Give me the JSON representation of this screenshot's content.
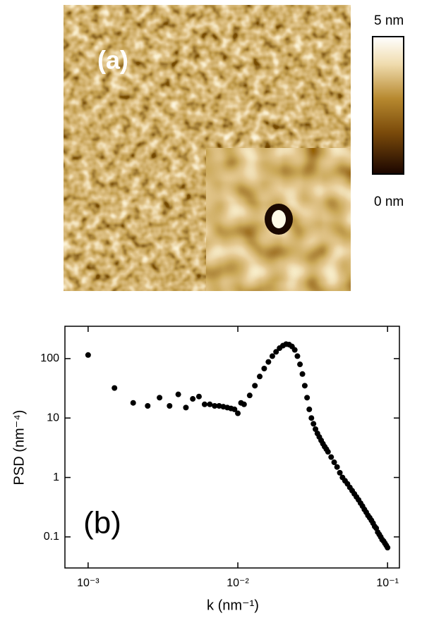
{
  "panel_a": {
    "label": "(a)",
    "colorbar": {
      "max_label": "5 nm",
      "min_label": "0 nm"
    }
  },
  "chart_data": {
    "type": "scatter",
    "panel_label": "(b)",
    "x_label": "k (nm⁻¹)",
    "y_label": "PSD (nm⁻⁴)",
    "x_scale": "log",
    "y_scale": "log",
    "xlim": [
      0.0007,
      0.12
    ],
    "ylim": [
      0.03,
      350
    ],
    "xticks": [
      {
        "value": 0.001,
        "label": "10⁻³"
      },
      {
        "value": 0.01,
        "label": "10⁻²"
      },
      {
        "value": 0.1,
        "label": "10⁻¹"
      }
    ],
    "yticks": [
      0.1,
      1,
      10,
      100
    ],
    "color": "#000000",
    "x": [
      0.001,
      0.0015,
      0.002,
      0.0025,
      0.003,
      0.0035,
      0.004,
      0.0045,
      0.005,
      0.0055,
      0.006,
      0.0065,
      0.007,
      0.0075,
      0.008,
      0.0085,
      0.009,
      0.0095,
      0.01,
      0.0105,
      0.011,
      0.012,
      0.013,
      0.014,
      0.015,
      0.016,
      0.017,
      0.018,
      0.019,
      0.02,
      0.021,
      0.022,
      0.023,
      0.024,
      0.025,
      0.026,
      0.027,
      0.028,
      0.029,
      0.03,
      0.031,
      0.032,
      0.033,
      0.034,
      0.035,
      0.036,
      0.037,
      0.038,
      0.039,
      0.04,
      0.042,
      0.044,
      0.046,
      0.048,
      0.05,
      0.052,
      0.054,
      0.056,
      0.058,
      0.06,
      0.062,
      0.064,
      0.066,
      0.068,
      0.07,
      0.072,
      0.074,
      0.076,
      0.078,
      0.08,
      0.082,
      0.084,
      0.086,
      0.088,
      0.09,
      0.092,
      0.094,
      0.096,
      0.098,
      0.1
    ],
    "y": [
      115,
      32,
      18,
      16,
      22,
      16,
      25,
      15,
      21,
      23,
      17,
      17,
      16,
      16,
      15.5,
      15,
      14.5,
      14,
      12,
      18,
      17,
      24,
      35,
      50,
      68,
      88,
      110,
      130,
      150,
      165,
      175,
      172,
      160,
      140,
      110,
      80,
      55,
      35,
      22,
      14,
      10,
      8,
      6.5,
      5.5,
      4.8,
      4.2,
      3.7,
      3.3,
      3.0,
      2.7,
      2.2,
      1.8,
      1.5,
      1.2,
      1.0,
      0.88,
      0.78,
      0.68,
      0.6,
      0.53,
      0.47,
      0.42,
      0.37,
      0.33,
      0.29,
      0.26,
      0.23,
      0.21,
      0.19,
      0.17,
      0.15,
      0.14,
      0.12,
      0.11,
      0.1,
      0.09,
      0.085,
      0.078,
      0.072,
      0.066
    ]
  }
}
